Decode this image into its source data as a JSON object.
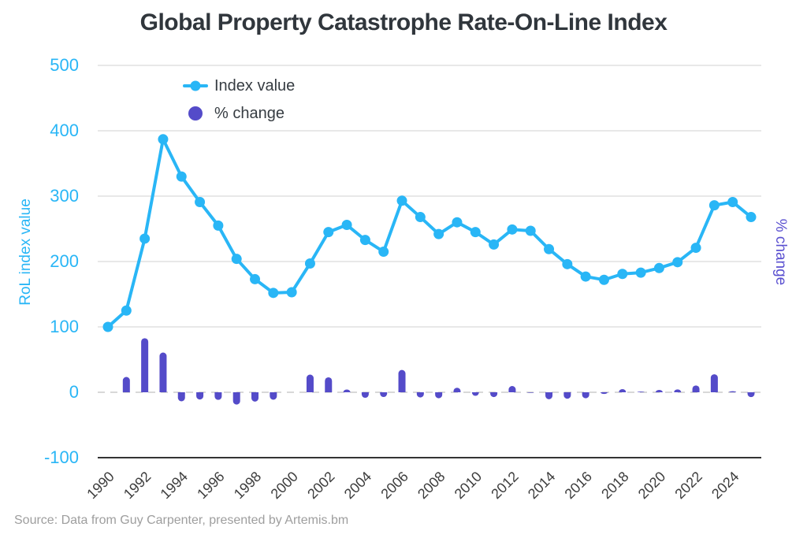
{
  "title": "Global Property Catastrophe Rate-On-Line Index",
  "source_note": "Source: Data from Guy Carpenter, presented by Artemis.bm",
  "legend": {
    "index_label": "Index value",
    "pct_label": "% change"
  },
  "colors": {
    "line_blue": "#29b6f6",
    "bar_purple": "#544bc9",
    "right_axis_purple": "#5a50d0",
    "title_text": "#30363c",
    "tick_text_dark": "#3d3d3d",
    "legend_text": "#363c42",
    "grid": "#e8e8e8",
    "zero_line": "#d8d8d8",
    "axis_line": "#333333",
    "source_text": "#9e9e9e",
    "background": "#ffffff"
  },
  "chart_data": {
    "type": "line+bar",
    "title": "Global Property Catastrophe Rate-On-Line Index",
    "ylabel_left": "RoL index value",
    "ylabel_right": "% change",
    "x": [
      1990,
      1991,
      1992,
      1993,
      1994,
      1995,
      1996,
      1997,
      1998,
      1999,
      2000,
      2001,
      2002,
      2003,
      2004,
      2005,
      2006,
      2007,
      2008,
      2009,
      2010,
      2011,
      2012,
      2013,
      2014,
      2015,
      2016,
      2017,
      2018,
      2019,
      2020,
      2021,
      2022,
      2023,
      2024,
      2025
    ],
    "xtick_labels": [
      "1990",
      "1992",
      "1994",
      "1996",
      "1998",
      "2000",
      "2002",
      "2004",
      "2006",
      "2008",
      "2010",
      "2012",
      "2014",
      "2016",
      "2018",
      "2020",
      "2022",
      "2024"
    ],
    "series": [
      {
        "name": "Index value",
        "type": "line",
        "axis": "left",
        "values": [
          100,
          125,
          235,
          387,
          330,
          291,
          255,
          204,
          173,
          152,
          153,
          197,
          245,
          256,
          233,
          215,
          293,
          268,
          242,
          260,
          245,
          226,
          249,
          247,
          219,
          196,
          177,
          172,
          181,
          183,
          190,
          199,
          221,
          286,
          291,
          268
        ]
      },
      {
        "name": "% change",
        "type": "bar",
        "axis": "right",
        "values": [
          null,
          25.0,
          88.0,
          64.7,
          -14.7,
          -11.8,
          -12.4,
          -20.0,
          -15.2,
          -12.1,
          0.7,
          28.8,
          24.4,
          4.5,
          -9.0,
          -7.7,
          36.3,
          -8.5,
          -9.7,
          7.4,
          -5.8,
          -7.8,
          10.2,
          -0.8,
          -11.3,
          -10.5,
          -9.7,
          -2.8,
          5.2,
          1.1,
          3.8,
          4.7,
          11.1,
          29.4,
          1.7,
          -7.9
        ]
      }
    ],
    "yticks_left": [
      500,
      400,
      300,
      200,
      100,
      0,
      -100
    ],
    "ylim_left": [
      -100,
      500
    ],
    "grid": true,
    "zero_line_style": "dashed",
    "legend_position": "top-left-inside"
  }
}
